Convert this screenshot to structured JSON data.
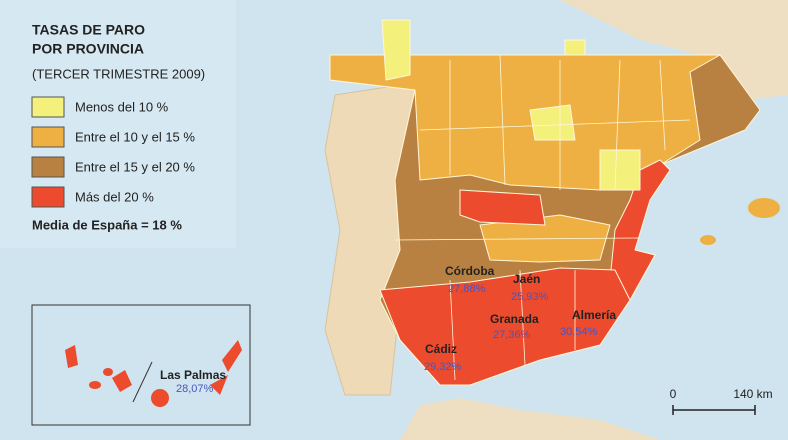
{
  "legend": {
    "title": [
      "TASAS DE PARO",
      "POR PROVINCIA"
    ],
    "subtitle": "(TERCER TRIMESTRE 2009)",
    "items": [
      {
        "label": "Menos del 10 %",
        "color": "#f4f07c"
      },
      {
        "label": "Entre el 10 y el 15 %",
        "color": "#eeb042"
      },
      {
        "label": "Entre el 15 y el  20 %",
        "color": "#b98141"
      },
      {
        "label": "Más del 20  %",
        "color": "#ec4b2d"
      }
    ],
    "note": "Media de España = 18 %"
  },
  "labels": [
    {
      "name": "Córdoba",
      "value": "27,88%"
    },
    {
      "name": "Jaén",
      "value": "25,93%"
    },
    {
      "name": "Granada",
      "value": "27,36%"
    },
    {
      "name": "Almería",
      "value": "30,54%"
    },
    {
      "name": "Cádiz",
      "value": "29,32%"
    },
    {
      "name": "Las Palmas",
      "value": "28,07%"
    }
  ],
  "scale": {
    "start": "0",
    "end": "140 km"
  }
}
